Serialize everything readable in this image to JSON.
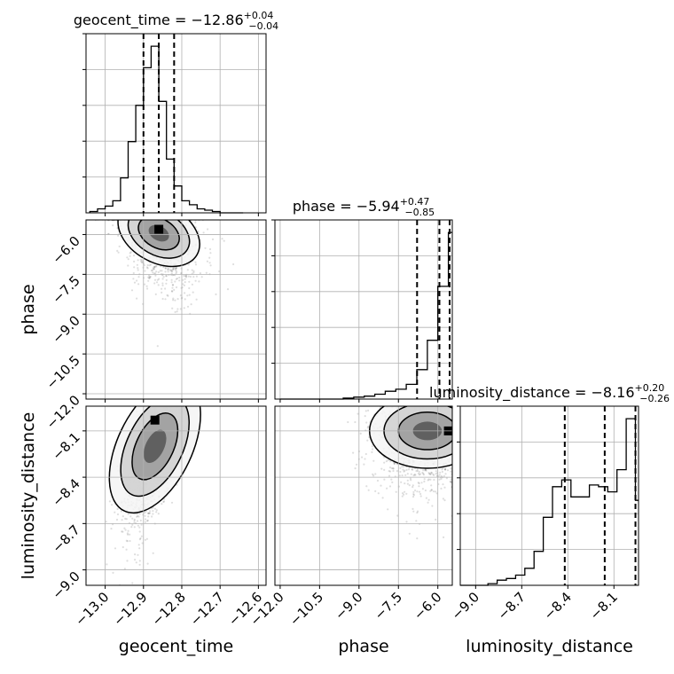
{
  "chart_data": {
    "type": "corner",
    "parameters": [
      "geocent_time",
      "phase",
      "luminosity_distance"
    ],
    "axis_labels": {
      "geocent_time": "geocent_time",
      "phase": "phase",
      "luminosity_distance": "luminosity_distance"
    },
    "ranges": {
      "geocent_time": [
        -13.05,
        -12.58
      ],
      "phase": [
        -12.2,
        -5.45
      ],
      "luminosity_distance": [
        -9.1,
        -7.94
      ]
    },
    "ticks": {
      "geocent_time": [
        "−13.0",
        "−12.9",
        "−12.8",
        "−12.7",
        "−12.6"
      ],
      "phase": [
        "−12.0",
        "−10.5",
        "−9.0",
        "−7.5",
        "−6.0"
      ],
      "luminosity_distance": [
        "−9.0",
        "−8.7",
        "−8.4",
        "−8.1"
      ]
    },
    "tick_values": {
      "geocent_time": [
        -13.0,
        -12.9,
        -12.8,
        -12.7,
        -12.6
      ],
      "phase": [
        -12.0,
        -10.5,
        -9.0,
        -7.5,
        -6.0
      ],
      "luminosity_distance": [
        -9.0,
        -8.7,
        -8.4,
        -8.1
      ]
    },
    "side_ticks": {
      "phase": [
        "−6.0",
        "−7.5",
        "−9.0",
        "−10.5",
        "−12.0"
      ],
      "luminosity_distance": [
        "−8.1",
        "−8.4",
        "−8.7",
        "−9.0"
      ]
    },
    "summaries": [
      {
        "param": "geocent_time",
        "prefix": "geocent_time = ",
        "median": "−12.86",
        "plus": "+0.04",
        "minus": "−0.04",
        "lo": -12.9,
        "mid": -12.86,
        "hi": -12.82
      },
      {
        "param": "phase",
        "prefix": "phase = ",
        "median": "−5.94",
        "plus": "+0.47",
        "minus": "−0.85",
        "lo": -6.79,
        "mid": -5.94,
        "hi": -5.47
      },
      {
        "param": "luminosity_distance",
        "prefix": "luminosity_distance = ",
        "median": "−8.16",
        "plus": "+0.20",
        "minus": "−0.26",
        "lo": -8.42,
        "mid": -8.16,
        "hi": -7.96
      }
    ],
    "histograms": {
      "geocent_time": {
        "bins": [
          -13.04,
          -13.02,
          -13.0,
          -12.98,
          -12.96,
          -12.94,
          -12.92,
          -12.9,
          -12.88,
          -12.86,
          -12.84,
          -12.82,
          -12.8,
          -12.78,
          -12.76,
          -12.74,
          -12.72,
          -12.7,
          -12.68,
          -12.66,
          -12.64
        ],
        "counts": [
          1,
          3,
          5,
          9,
          26,
          53,
          80,
          108,
          124,
          83,
          40,
          20,
          9,
          6,
          3,
          2,
          1,
          0,
          0,
          0
        ]
      },
      "phase": {
        "bins": [
          -12.0,
          -11.6,
          -11.2,
          -10.8,
          -10.4,
          -10.0,
          -9.6,
          -9.2,
          -8.8,
          -8.4,
          -8.0,
          -7.6,
          -7.2,
          -6.8,
          -6.4,
          -6.0,
          -5.6,
          -5.44
        ],
        "counts": [
          0,
          0,
          0,
          0,
          0,
          0,
          1,
          2,
          3,
          5,
          8,
          10,
          15,
          30,
          60,
          115,
          170
        ]
      },
      "luminosity_distance": {
        "bins": [
          -9.1,
          -9.04,
          -8.98,
          -8.92,
          -8.86,
          -8.8,
          -8.74,
          -8.68,
          -8.62,
          -8.56,
          -8.5,
          -8.44,
          -8.38,
          -8.32,
          -8.26,
          -8.2,
          -8.14,
          -8.08,
          -8.02,
          -7.96,
          -7.94
        ],
        "counts": [
          0,
          0,
          0,
          1,
          3,
          4,
          6,
          10,
          20,
          40,
          58,
          62,
          52,
          52,
          59,
          58,
          55,
          68,
          98,
          50
        ]
      }
    },
    "scatter_2d": [
      {
        "x": "geocent_time",
        "y": "phase",
        "centre": [
          -12.86,
          -5.95
        ],
        "spread": [
          0.05,
          1.0
        ],
        "tilt": -0.4,
        "peak": [
          -12.86,
          -5.8
        ]
      },
      {
        "x": "geocent_time",
        "y": "luminosity_distance",
        "centre": [
          -12.87,
          -8.2
        ],
        "spread": [
          0.04,
          0.22
        ],
        "tilt": 0.95,
        "peak": [
          -12.87,
          -8.03
        ]
      },
      {
        "x": "phase",
        "y": "luminosity_distance",
        "centre": [
          -6.4,
          -8.1
        ],
        "spread": [
          1.1,
          0.22
        ],
        "tilt": 0.0,
        "peak": [
          -5.6,
          -8.1
        ]
      }
    ],
    "grid": true
  }
}
